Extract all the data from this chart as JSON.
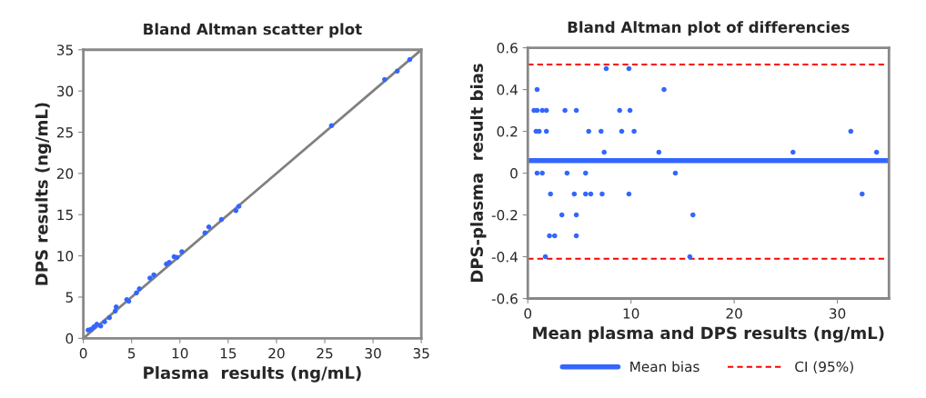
{
  "chart_data": [
    {
      "type": "scatter",
      "title": "Bland Altman scatter plot",
      "xlabel": "Plasma  results (ng/mL)",
      "ylabel": "DPS results (ng/mL)",
      "xlim": [
        0,
        35
      ],
      "ylim": [
        0,
        35
      ],
      "xticks": [
        0,
        5,
        10,
        15,
        20,
        25,
        30,
        35
      ],
      "yticks": [
        0,
        5,
        10,
        15,
        20,
        25,
        30,
        35
      ],
      "grid": false,
      "legend": false,
      "series": [
        {
          "marker": "circle",
          "color": "#3366ff",
          "x": [
            0.5,
            0.8,
            1.1,
            1.4,
            1.8,
            2.2,
            2.7,
            3.3,
            3.4,
            4.5,
            4.7,
            5.5,
            5.8,
            6.9,
            7.3,
            8.6,
            8.9,
            9.4,
            9.7,
            10.2,
            12.6,
            13.0,
            14.3,
            15.8,
            16.1,
            25.7,
            31.2,
            32.5,
            33.8
          ],
          "values": [
            1.0,
            1.1,
            1.4,
            1.7,
            1.5,
            2.0,
            2.5,
            3.3,
            3.8,
            4.7,
            4.5,
            5.5,
            6.0,
            7.3,
            7.7,
            9.0,
            9.2,
            9.9,
            9.8,
            10.5,
            12.8,
            13.5,
            14.4,
            15.5,
            16.0,
            25.8,
            31.4,
            32.4,
            33.8
          ]
        },
        {
          "type": "line",
          "color": "#808080",
          "x": [
            0,
            35
          ],
          "values": [
            0,
            35
          ]
        }
      ]
    },
    {
      "type": "scatter",
      "title": "Bland Altman plot of differencies",
      "xlabel": "Mean plasma and DPS results (ng/mL)",
      "ylabel": "DPS-plasma  result bias",
      "xlim": [
        0,
        35
      ],
      "ylim": [
        -0.6,
        0.6
      ],
      "xticks": [
        0,
        10,
        20,
        30
      ],
      "yticks": [
        -0.6,
        -0.4,
        -0.2,
        0,
        0.2,
        0.4,
        0.6
      ],
      "grid": false,
      "legend": "bottom",
      "marker": "circle",
      "series": [
        {
          "color": "#3366ff",
          "x": [
            7.6,
            9.8,
            0.9,
            13.2,
            0.6,
            0.9,
            1.4,
            1.8,
            3.6,
            4.7,
            8.9,
            9.9,
            0.8,
            1.1,
            1.8,
            5.9,
            7.1,
            9.1,
            10.3,
            31.3,
            7.4,
            12.7,
            25.7,
            33.8,
            0.9,
            1.4,
            3.8,
            5.6,
            14.3,
            2.2,
            4.5,
            5.6,
            6.1,
            7.2,
            9.8,
            32.4,
            3.3,
            4.7,
            16.0,
            2.1,
            2.6,
            4.7,
            1.7,
            15.7
          ],
          "values": [
            0.5,
            0.5,
            0.4,
            0.4,
            0.3,
            0.3,
            0.3,
            0.3,
            0.3,
            0.3,
            0.3,
            0.3,
            0.2,
            0.2,
            0.2,
            0.2,
            0.2,
            0.2,
            0.2,
            0.2,
            0.1,
            0.1,
            0.1,
            0.1,
            0,
            0,
            0,
            0,
            0,
            -0.1,
            -0.1,
            -0.1,
            -0.1,
            -0.1,
            -0.1,
            -0.1,
            -0.2,
            -0.2,
            -0.2,
            -0.3,
            -0.3,
            -0.3,
            -0.4,
            -0.4
          ]
        }
      ],
      "ref_lines": [
        {
          "axis": "y",
          "value": 0.06,
          "label": "Mean bias",
          "color": "#3366ff",
          "line_style": "solid"
        },
        {
          "axis": "y",
          "value": 0.52,
          "label": "CI (95%)",
          "color": "#ff0000",
          "line_style": "dashed"
        },
        {
          "axis": "y",
          "value": -0.41,
          "color": "#ff0000",
          "line_style": "dashed"
        }
      ]
    }
  ]
}
